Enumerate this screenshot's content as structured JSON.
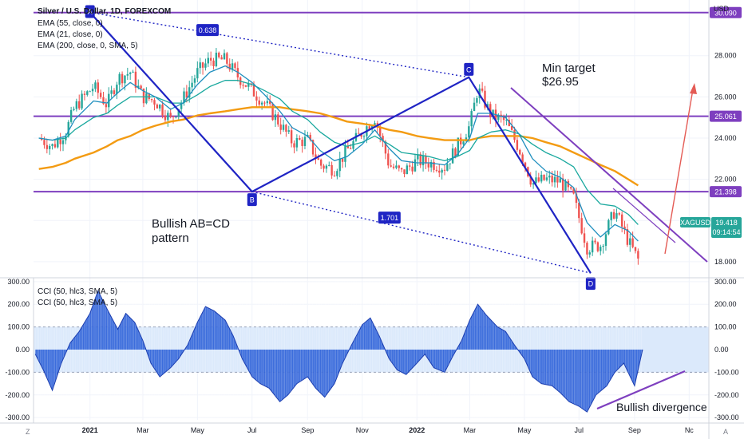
{
  "chart_data": {
    "type": "candlestick",
    "header": {
      "title": "Silver / U.S. Dollar, 1D, FOREXCOM",
      "indicators": [
        "EMA (55, close, 0)",
        "EMA (21, close, 0)",
        "EMA (200, close, 0, SMA, 5)"
      ],
      "oscillators": [
        "CCI (50, hlc3, SMA, 5)",
        "CCI (50, hlc3, SMA, 5)"
      ]
    },
    "price_axis": {
      "currency": "USD",
      "ticks": [
        18,
        20,
        22,
        24,
        26,
        28
      ],
      "tick_labels": [
        "18.000",
        "20.000",
        "22.000",
        "24.000",
        "26.000",
        "28.000"
      ],
      "range": [
        17.3,
        30.7
      ]
    },
    "cci_axis": {
      "ticks": [
        300,
        200,
        100,
        0,
        -100,
        -200,
        -300
      ],
      "tick_labels": [
        "300.00",
        "200.00",
        "100.00",
        "0.00",
        "-100.00",
        "-200.00",
        "-300.00"
      ],
      "range": [
        -310,
        310
      ],
      "band": [
        -100,
        100
      ]
    },
    "time_axis": {
      "labels": [
        "2021",
        "Mar",
        "May",
        "Jul",
        "Sep",
        "Nov",
        "2022",
        "Mar",
        "May",
        "Jul",
        "Sep",
        "Nc"
      ],
      "bold": [
        "2021",
        "2022"
      ],
      "dates": [
        "2021-01-01",
        "2021-03-01",
        "2021-05-01",
        "2021-07-01",
        "2021-09-01",
        "2021-11-01",
        "2022-01-01",
        "2022-03-01",
        "2022-05-01",
        "2022-07-01",
        "2022-09-01",
        "2022-11-01"
      ],
      "range": [
        "2020-10-30",
        "2022-11-23"
      ]
    },
    "horizontal_levels": [
      {
        "label": "30.090",
        "value": 30.09
      },
      {
        "label": "25.061",
        "value": 25.061
      },
      {
        "label": "21.398",
        "value": 21.398
      }
    ],
    "price_tag": {
      "symbol": "XAGUSD",
      "price": "19.418",
      "countdown": "09:14:54",
      "value": 19.418
    },
    "close_series": {
      "dates": [
        "2020-11-05",
        "2020-11-20",
        "2020-12-05",
        "2020-12-15",
        "2021-01-05",
        "2021-01-20",
        "2021-02-01",
        "2021-02-15",
        "2021-03-01",
        "2021-03-15",
        "2021-04-01",
        "2021-04-15",
        "2021-05-01",
        "2021-05-15",
        "2021-06-01",
        "2021-06-15",
        "2021-07-01",
        "2021-07-15",
        "2021-08-01",
        "2021-08-15",
        "2021-09-01",
        "2021-09-15",
        "2021-10-01",
        "2021-10-15",
        "2021-11-01",
        "2021-11-15",
        "2021-12-01",
        "2021-12-15",
        "2022-01-01",
        "2022-01-15",
        "2022-02-01",
        "2022-02-15",
        "2022-03-01",
        "2022-03-10",
        "2022-03-25",
        "2022-04-10",
        "2022-04-25",
        "2022-05-10",
        "2022-05-25",
        "2022-06-10",
        "2022-06-25",
        "2022-07-10",
        "2022-07-25",
        "2022-08-10",
        "2022-08-25",
        "2022-09-05"
      ],
      "values": [
        24.0,
        23.6,
        24.3,
        25.5,
        26.5,
        25.6,
        26.9,
        27.2,
        26.0,
        25.8,
        24.9,
        25.9,
        27.2,
        27.8,
        27.8,
        27.0,
        26.3,
        25.7,
        24.7,
        23.8,
        23.9,
        22.7,
        22.5,
        23.4,
        24.3,
        25.0,
        22.7,
        22.3,
        22.9,
        22.8,
        22.6,
        23.6,
        24.6,
        26.4,
        25.1,
        24.8,
        23.5,
        21.8,
        22.0,
        21.9,
        21.1,
        18.7,
        18.8,
        20.5,
        19.0,
        18.1
      ]
    },
    "ema_21": [
      24.0,
      23.9,
      24.1,
      24.9,
      25.8,
      25.7,
      26.2,
      26.7,
      26.3,
      26.0,
      25.4,
      25.7,
      26.6,
      27.2,
      27.5,
      27.2,
      26.7,
      26.1,
      25.3,
      24.5,
      24.1,
      23.4,
      22.9,
      23.1,
      23.7,
      24.4,
      23.5,
      22.9,
      22.8,
      22.8,
      22.7,
      23.2,
      24.0,
      25.2,
      25.2,
      25.0,
      24.2,
      23.0,
      22.4,
      22.1,
      21.6,
      19.9,
      19.2,
      19.8,
      19.5,
      19.0
    ],
    "ema_55": [
      24.0,
      23.9,
      24.0,
      24.4,
      25.0,
      25.2,
      25.6,
      26.0,
      26.0,
      26.0,
      25.7,
      25.7,
      26.1,
      26.5,
      26.8,
      26.8,
      26.6,
      26.3,
      25.9,
      25.3,
      24.9,
      24.3,
      23.8,
      23.6,
      23.8,
      24.1,
      23.7,
      23.3,
      23.2,
      23.1,
      22.9,
      23.1,
      23.4,
      24.0,
      24.3,
      24.4,
      24.2,
      23.7,
      23.3,
      23.0,
      22.6,
      21.5,
      20.8,
      20.7,
      20.3,
      19.8
    ],
    "ema_200": [
      22.5,
      22.6,
      22.8,
      23.0,
      23.3,
      23.6,
      23.9,
      24.1,
      24.4,
      24.6,
      24.8,
      24.9,
      25.1,
      25.2,
      25.3,
      25.4,
      25.5,
      25.5,
      25.5,
      25.4,
      25.3,
      25.2,
      25.0,
      24.8,
      24.7,
      24.6,
      24.4,
      24.3,
      24.1,
      24.0,
      23.9,
      23.9,
      23.9,
      24.0,
      24.1,
      24.1,
      24.1,
      24.0,
      23.8,
      23.6,
      23.3,
      23.0,
      22.7,
      22.4,
      22.0,
      21.7
    ],
    "cci": {
      "dates": [
        "2020-11-01",
        "2020-11-10",
        "2020-11-20",
        "2020-11-30",
        "2020-12-10",
        "2020-12-20",
        "2021-01-01",
        "2021-01-10",
        "2021-01-20",
        "2021-02-01",
        "2021-02-10",
        "2021-02-20",
        "2021-03-01",
        "2021-03-10",
        "2021-03-20",
        "2021-04-01",
        "2021-04-10",
        "2021-04-20",
        "2021-05-01",
        "2021-05-10",
        "2021-05-20",
        "2021-06-01",
        "2021-06-10",
        "2021-06-20",
        "2021-07-01",
        "2021-07-10",
        "2021-07-20",
        "2021-08-01",
        "2021-08-10",
        "2021-08-20",
        "2021-09-01",
        "2021-09-10",
        "2021-09-20",
        "2021-10-01",
        "2021-10-10",
        "2021-10-20",
        "2021-11-01",
        "2021-11-10",
        "2021-11-20",
        "2021-12-01",
        "2021-12-10",
        "2021-12-20",
        "2022-01-01",
        "2022-01-10",
        "2022-01-20",
        "2022-02-01",
        "2022-02-10",
        "2022-02-20",
        "2022-03-01",
        "2022-03-10",
        "2022-03-20",
        "2022-04-01",
        "2022-04-10",
        "2022-04-20",
        "2022-05-01",
        "2022-05-10",
        "2022-05-20",
        "2022-06-01",
        "2022-06-10",
        "2022-06-20",
        "2022-07-01",
        "2022-07-10",
        "2022-07-20",
        "2022-08-01",
        "2022-08-10",
        "2022-08-20",
        "2022-09-01",
        "2022-09-10"
      ],
      "values": [
        -20,
        -90,
        -180,
        -60,
        30,
        80,
        160,
        260,
        180,
        90,
        160,
        120,
        40,
        -60,
        -120,
        -80,
        -40,
        20,
        120,
        190,
        170,
        130,
        60,
        -40,
        -120,
        -150,
        -170,
        -230,
        -200,
        -150,
        -120,
        -170,
        -210,
        -150,
        -60,
        20,
        110,
        140,
        60,
        -40,
        -90,
        -110,
        -60,
        -20,
        -80,
        -100,
        -30,
        40,
        130,
        200,
        150,
        100,
        80,
        20,
        -40,
        -120,
        -150,
        -160,
        -190,
        -230,
        -250,
        -275,
        -200,
        -160,
        -100,
        -60,
        -160,
        0
      ]
    },
    "pattern": {
      "name": "Bullish AB=CD pattern",
      "points": [
        {
          "label": "A",
          "date": "2021-01-01",
          "value": 30.1
        },
        {
          "label": "B",
          "date": "2021-07-01",
          "value": 21.4
        },
        {
          "label": "C",
          "date": "2022-02-28",
          "value": 26.95
        },
        {
          "label": "D",
          "date": "2022-07-14",
          "value": 17.45
        }
      ],
      "ratios": [
        "0.638",
        "1.701"
      ]
    },
    "annotations": {
      "target": [
        "Min target",
        "$26.95"
      ],
      "pattern_text": [
        "Bullish AB=CD",
        "pattern"
      ],
      "divergence": "Bullish divergence"
    },
    "colors": {
      "up": "#26a69a",
      "down": "#ef5350",
      "ema21": "#1f8fbf",
      "ema55": "#19a89e",
      "ema200": "#f39b12",
      "pattern": "#1f24c4",
      "level": "#7e3fbf",
      "cci": "#2f62d9",
      "cci_band": "#dbe9fb",
      "tag": "#26a69a",
      "arrow": "#e45b55"
    }
  }
}
